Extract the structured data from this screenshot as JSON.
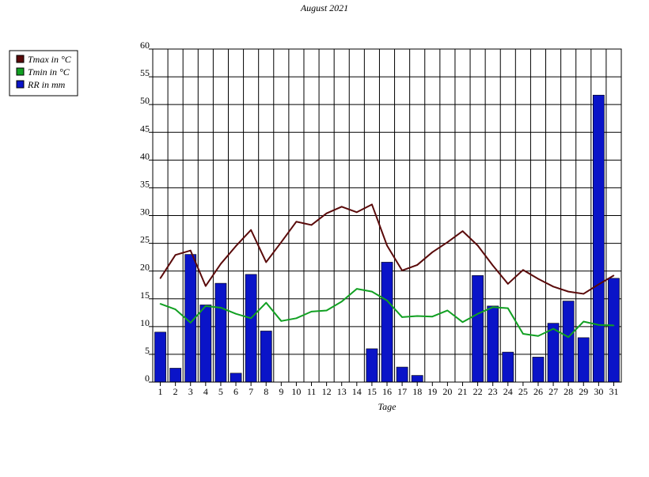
{
  "chart_data": {
    "type": "bar",
    "title": "August 2021",
    "xlabel": "Tage",
    "ylabel": "",
    "ylim": [
      0,
      60
    ],
    "yticks": [
      "0",
      "5",
      "10",
      "15",
      "20",
      "25",
      "30",
      "35",
      "40",
      "45",
      "50",
      "55",
      "60"
    ],
    "categories": [
      "1",
      "2",
      "3",
      "4",
      "5",
      "6",
      "7",
      "8",
      "9",
      "10",
      "11",
      "12",
      "13",
      "14",
      "15",
      "16",
      "17",
      "18",
      "19",
      "20",
      "21",
      "22",
      "23",
      "24",
      "25",
      "26",
      "27",
      "28",
      "29",
      "30",
      "31"
    ],
    "grid": true,
    "legend_position": "top-left",
    "series": [
      {
        "name": "Tmax in °C",
        "type": "line",
        "color": "#5a0a0a",
        "values": [
          18.7,
          22.9,
          23.7,
          17.3,
          21.3,
          24.5,
          27.4,
          21.6,
          25.2,
          28.9,
          28.3,
          30.4,
          31.6,
          30.6,
          32.0,
          24.6,
          20.1,
          21.1,
          23.4,
          25.2,
          27.2,
          24.6,
          21.0,
          17.7,
          20.2,
          18.6,
          17.2,
          16.3,
          15.9,
          17.6,
          19.2
        ]
      },
      {
        "name": "Tmin in °C",
        "type": "line",
        "color": "#11a022",
        "values": [
          14.1,
          13.1,
          10.7,
          13.7,
          13.4,
          12.3,
          11.5,
          14.3,
          11.0,
          11.5,
          12.7,
          12.9,
          14.5,
          16.8,
          16.3,
          14.7,
          11.7,
          11.9,
          11.8,
          12.9,
          10.8,
          12.3,
          13.5,
          13.3,
          8.7,
          8.3,
          9.6,
          8.1,
          10.9,
          10.3,
          10.2
        ]
      },
      {
        "name": "RR in mm",
        "type": "bar",
        "color": "#0a14c8",
        "values": [
          9.0,
          2.5,
          23.0,
          13.9,
          17.8,
          1.6,
          19.4,
          9.2,
          0,
          0,
          0,
          0,
          0,
          0,
          6.0,
          21.6,
          2.7,
          1.2,
          0,
          0,
          0,
          19.2,
          13.7,
          5.4,
          0,
          4.5,
          10.6,
          14.6,
          8.0,
          51.7,
          18.7
        ]
      }
    ]
  }
}
